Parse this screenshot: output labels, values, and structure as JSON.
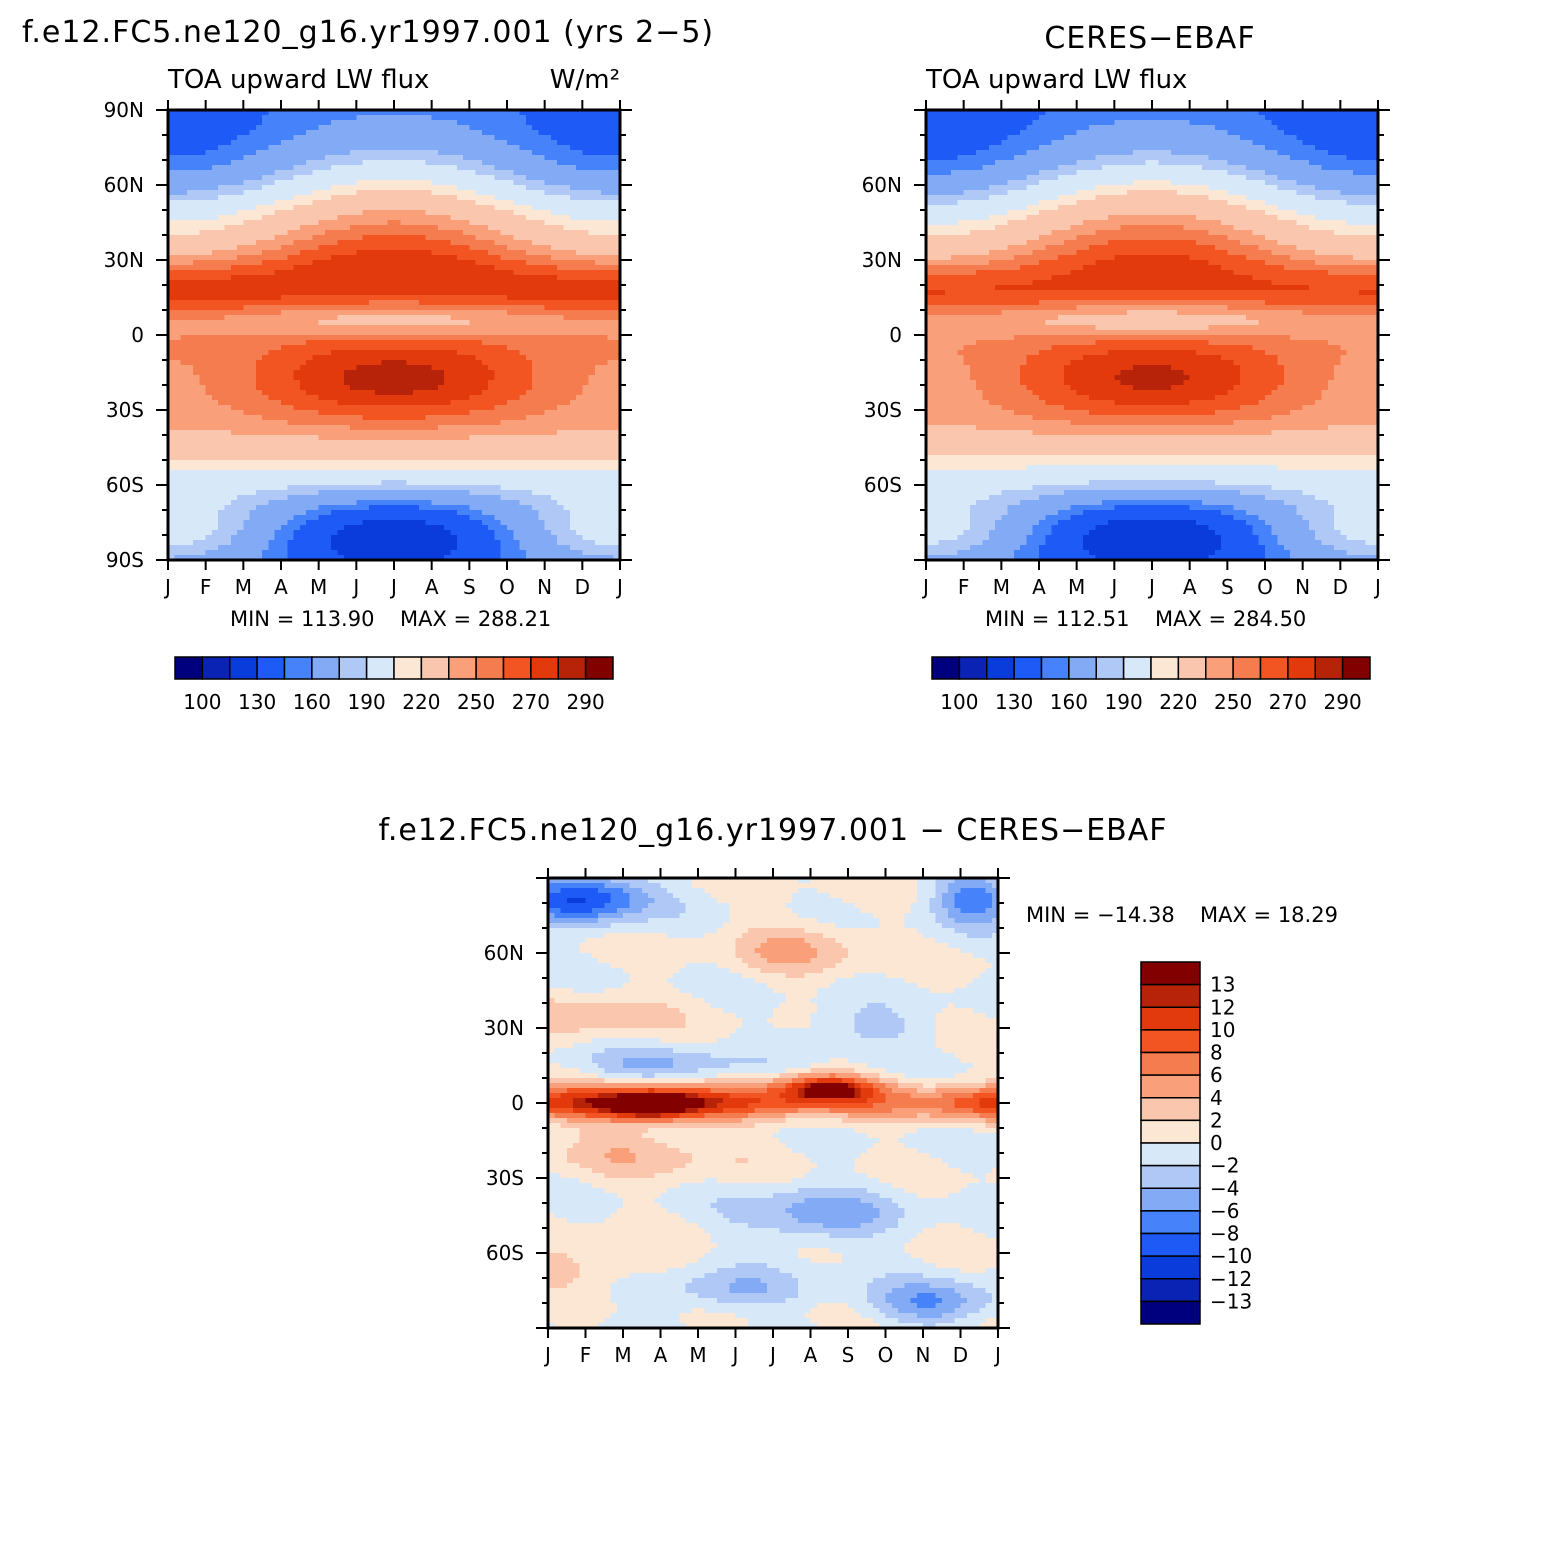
{
  "figure": {
    "title_left": "f.e12.FC5.ne120_g16.yr1997.001 (yrs 2−5)",
    "title_right": "CERES−EBAF",
    "title_diff": "f.e12.FC5.ne120_g16.yr1997.001 − CERES−EBAF"
  },
  "chart_data": [
    {
      "id": "model",
      "type": "heatmap",
      "variable": "TOA upward LW flux",
      "units": "W/m²",
      "x_ticks": [
        "J",
        "F",
        "M",
        "A",
        "M",
        "J",
        "J",
        "A",
        "S",
        "O",
        "N",
        "D",
        "J"
      ],
      "y_ticks": [
        "90N",
        "60N",
        "30N",
        "0",
        "30S",
        "60S",
        "90S"
      ],
      "min_label": "MIN = 113.90",
      "max_label": "MAX = 288.21",
      "min": 113.9,
      "max": 288.21,
      "colorbar_levels": [
        100,
        110,
        130,
        150,
        160,
        180,
        190,
        210,
        220,
        240,
        250,
        260,
        270,
        280,
        290
      ],
      "colorbar_labels": [
        "100",
        "130",
        "160",
        "190",
        "220",
        "250",
        "270",
        "290"
      ]
    },
    {
      "id": "obs",
      "type": "heatmap",
      "variable": "TOA upward LW flux",
      "x_ticks": [
        "J",
        "F",
        "M",
        "A",
        "M",
        "J",
        "J",
        "A",
        "S",
        "O",
        "N",
        "D",
        "J"
      ],
      "y_ticks": [
        "60N",
        "30N",
        "0",
        "30S",
        "60S"
      ],
      "min_label": "MIN = 112.51",
      "max_label": "MAX = 284.50",
      "min": 112.51,
      "max": 284.5,
      "colorbar_levels": [
        100,
        110,
        130,
        150,
        160,
        180,
        190,
        210,
        220,
        240,
        250,
        260,
        270,
        280,
        290
      ],
      "colorbar_labels": [
        "100",
        "130",
        "160",
        "190",
        "220",
        "250",
        "270",
        "290"
      ]
    },
    {
      "id": "diff",
      "type": "heatmap",
      "x_ticks": [
        "J",
        "F",
        "M",
        "A",
        "M",
        "J",
        "J",
        "A",
        "S",
        "O",
        "N",
        "D",
        "J"
      ],
      "y_ticks": [
        "60N",
        "30N",
        "0",
        "30S",
        "60S"
      ],
      "min_label": "MIN = −14.38",
      "max_label": "MAX =  18.29",
      "min": -14.38,
      "max": 18.29,
      "colorbar_levels": [
        -13,
        -12,
        -10,
        -8,
        -6,
        -4,
        -2,
        0,
        2,
        4,
        6,
        8,
        10,
        12,
        13
      ],
      "colorbar_labels": [
        "13",
        "12",
        "10",
        "8",
        "6",
        "4",
        "2",
        "0",
        "−2",
        "−4",
        "−6",
        "−8",
        "−10",
        "−12",
        "−13"
      ]
    }
  ],
  "palette": [
    "#00007f",
    "#0a23b4",
    "#0a3cdc",
    "#1e5af5",
    "#4682fa",
    "#82aaf5",
    "#afc8f5",
    "#d7e8f8",
    "#fce6d4",
    "#fac7ae",
    "#f9a07b",
    "#f57c4f",
    "#f25522",
    "#e23a0c",
    "#b72308",
    "#820000"
  ]
}
